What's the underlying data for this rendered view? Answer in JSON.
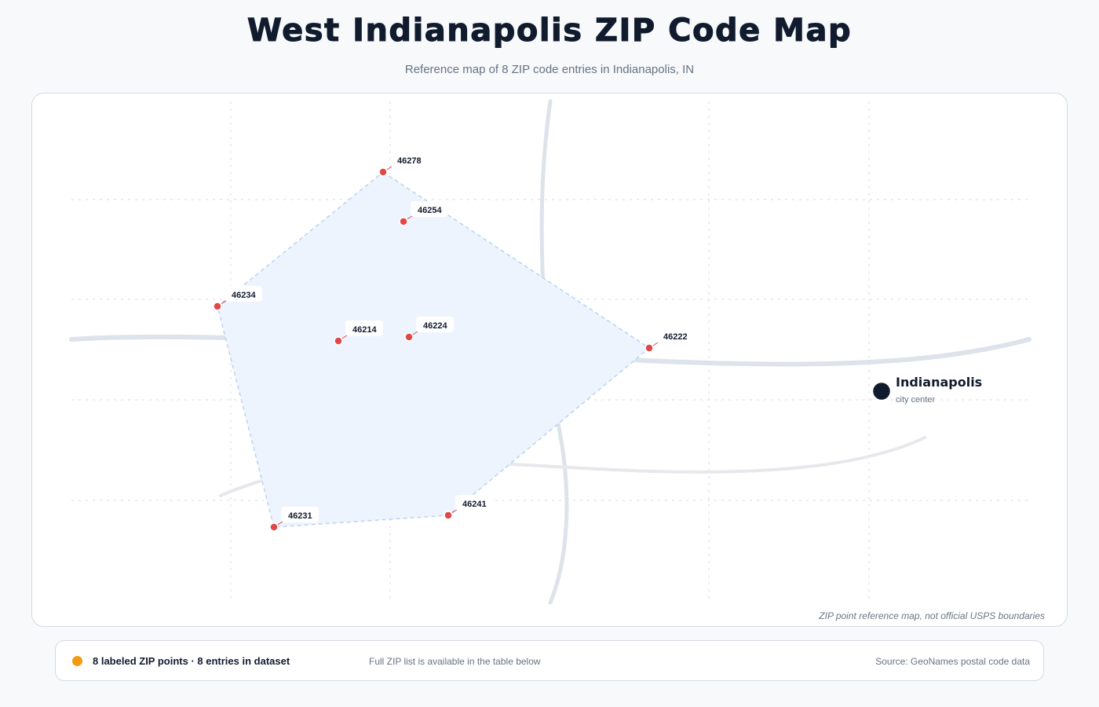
{
  "header": {
    "title": "West Indianapolis ZIP Code Map",
    "subtitle": "Reference map of 8 ZIP code entries in Indianapolis, IN"
  },
  "map": {
    "disclaimer": "ZIP point reference map, not official USPS boundaries",
    "zip_points": [
      {
        "zip": "46278"
      },
      {
        "zip": "46254"
      },
      {
        "zip": "46234"
      },
      {
        "zip": "46214"
      },
      {
        "zip": "46224"
      },
      {
        "zip": "46222"
      },
      {
        "zip": "46231"
      },
      {
        "zip": "46241"
      }
    ],
    "city": {
      "name": "Indianapolis",
      "sublabel": "city center"
    }
  },
  "legend": {
    "count_text": "8 labeled ZIP points · 8 entries in dataset",
    "note": "Full ZIP list is available in the table below",
    "source": "Source: GeoNames postal code data"
  },
  "colors": {
    "zip_point": "#e04848",
    "coverage_fill": "#eef4fd",
    "coverage_stroke": "#b9d3f0",
    "legend_dot": "#f39c12",
    "city_marker": "#111b2e",
    "roads": "#dde3ea"
  }
}
